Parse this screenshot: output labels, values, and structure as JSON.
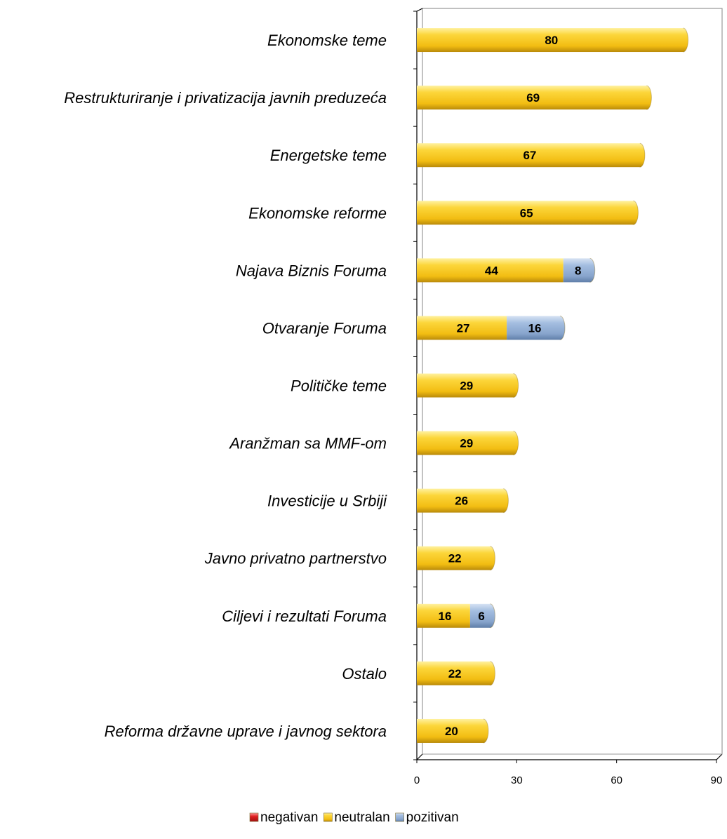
{
  "chart_data": {
    "type": "bar",
    "orientation": "horizontal",
    "stacked": true,
    "categories": [
      "Ekonomske teme",
      "Restrukturiranje i privatizacija javnih preduzeća",
      "Energetske teme",
      "Ekonomske reforme",
      "Najava Biznis Foruma",
      "Otvaranje Foruma",
      "Političke teme",
      "Aranžman sa MMF-om",
      "Investicije u Srbiji",
      "Javno privatno partnerstvo",
      "Ciljevi i rezultati Foruma",
      "Ostalo",
      "Reforma državne uprave i javnog sektora"
    ],
    "series": [
      {
        "name": "negativan",
        "color": "#e02020",
        "values": [
          0,
          0,
          0,
          0,
          0,
          0,
          0,
          0,
          0,
          0,
          0,
          0,
          0
        ]
      },
      {
        "name": "neutralan",
        "color": "#f5c518",
        "values": [
          80,
          69,
          67,
          65,
          44,
          27,
          29,
          29,
          26,
          22,
          16,
          22,
          20
        ]
      },
      {
        "name": "pozitivan",
        "color": "#8ea9cf",
        "values": [
          0,
          0,
          0,
          0,
          8,
          16,
          0,
          0,
          0,
          0,
          6,
          0,
          0
        ]
      }
    ],
    "xlim": [
      0,
      90
    ],
    "xticks": [
      0,
      30,
      60,
      90
    ],
    "title": "",
    "xlabel": "",
    "ylabel": "",
    "grid": false,
    "legend_position": "bottom"
  }
}
